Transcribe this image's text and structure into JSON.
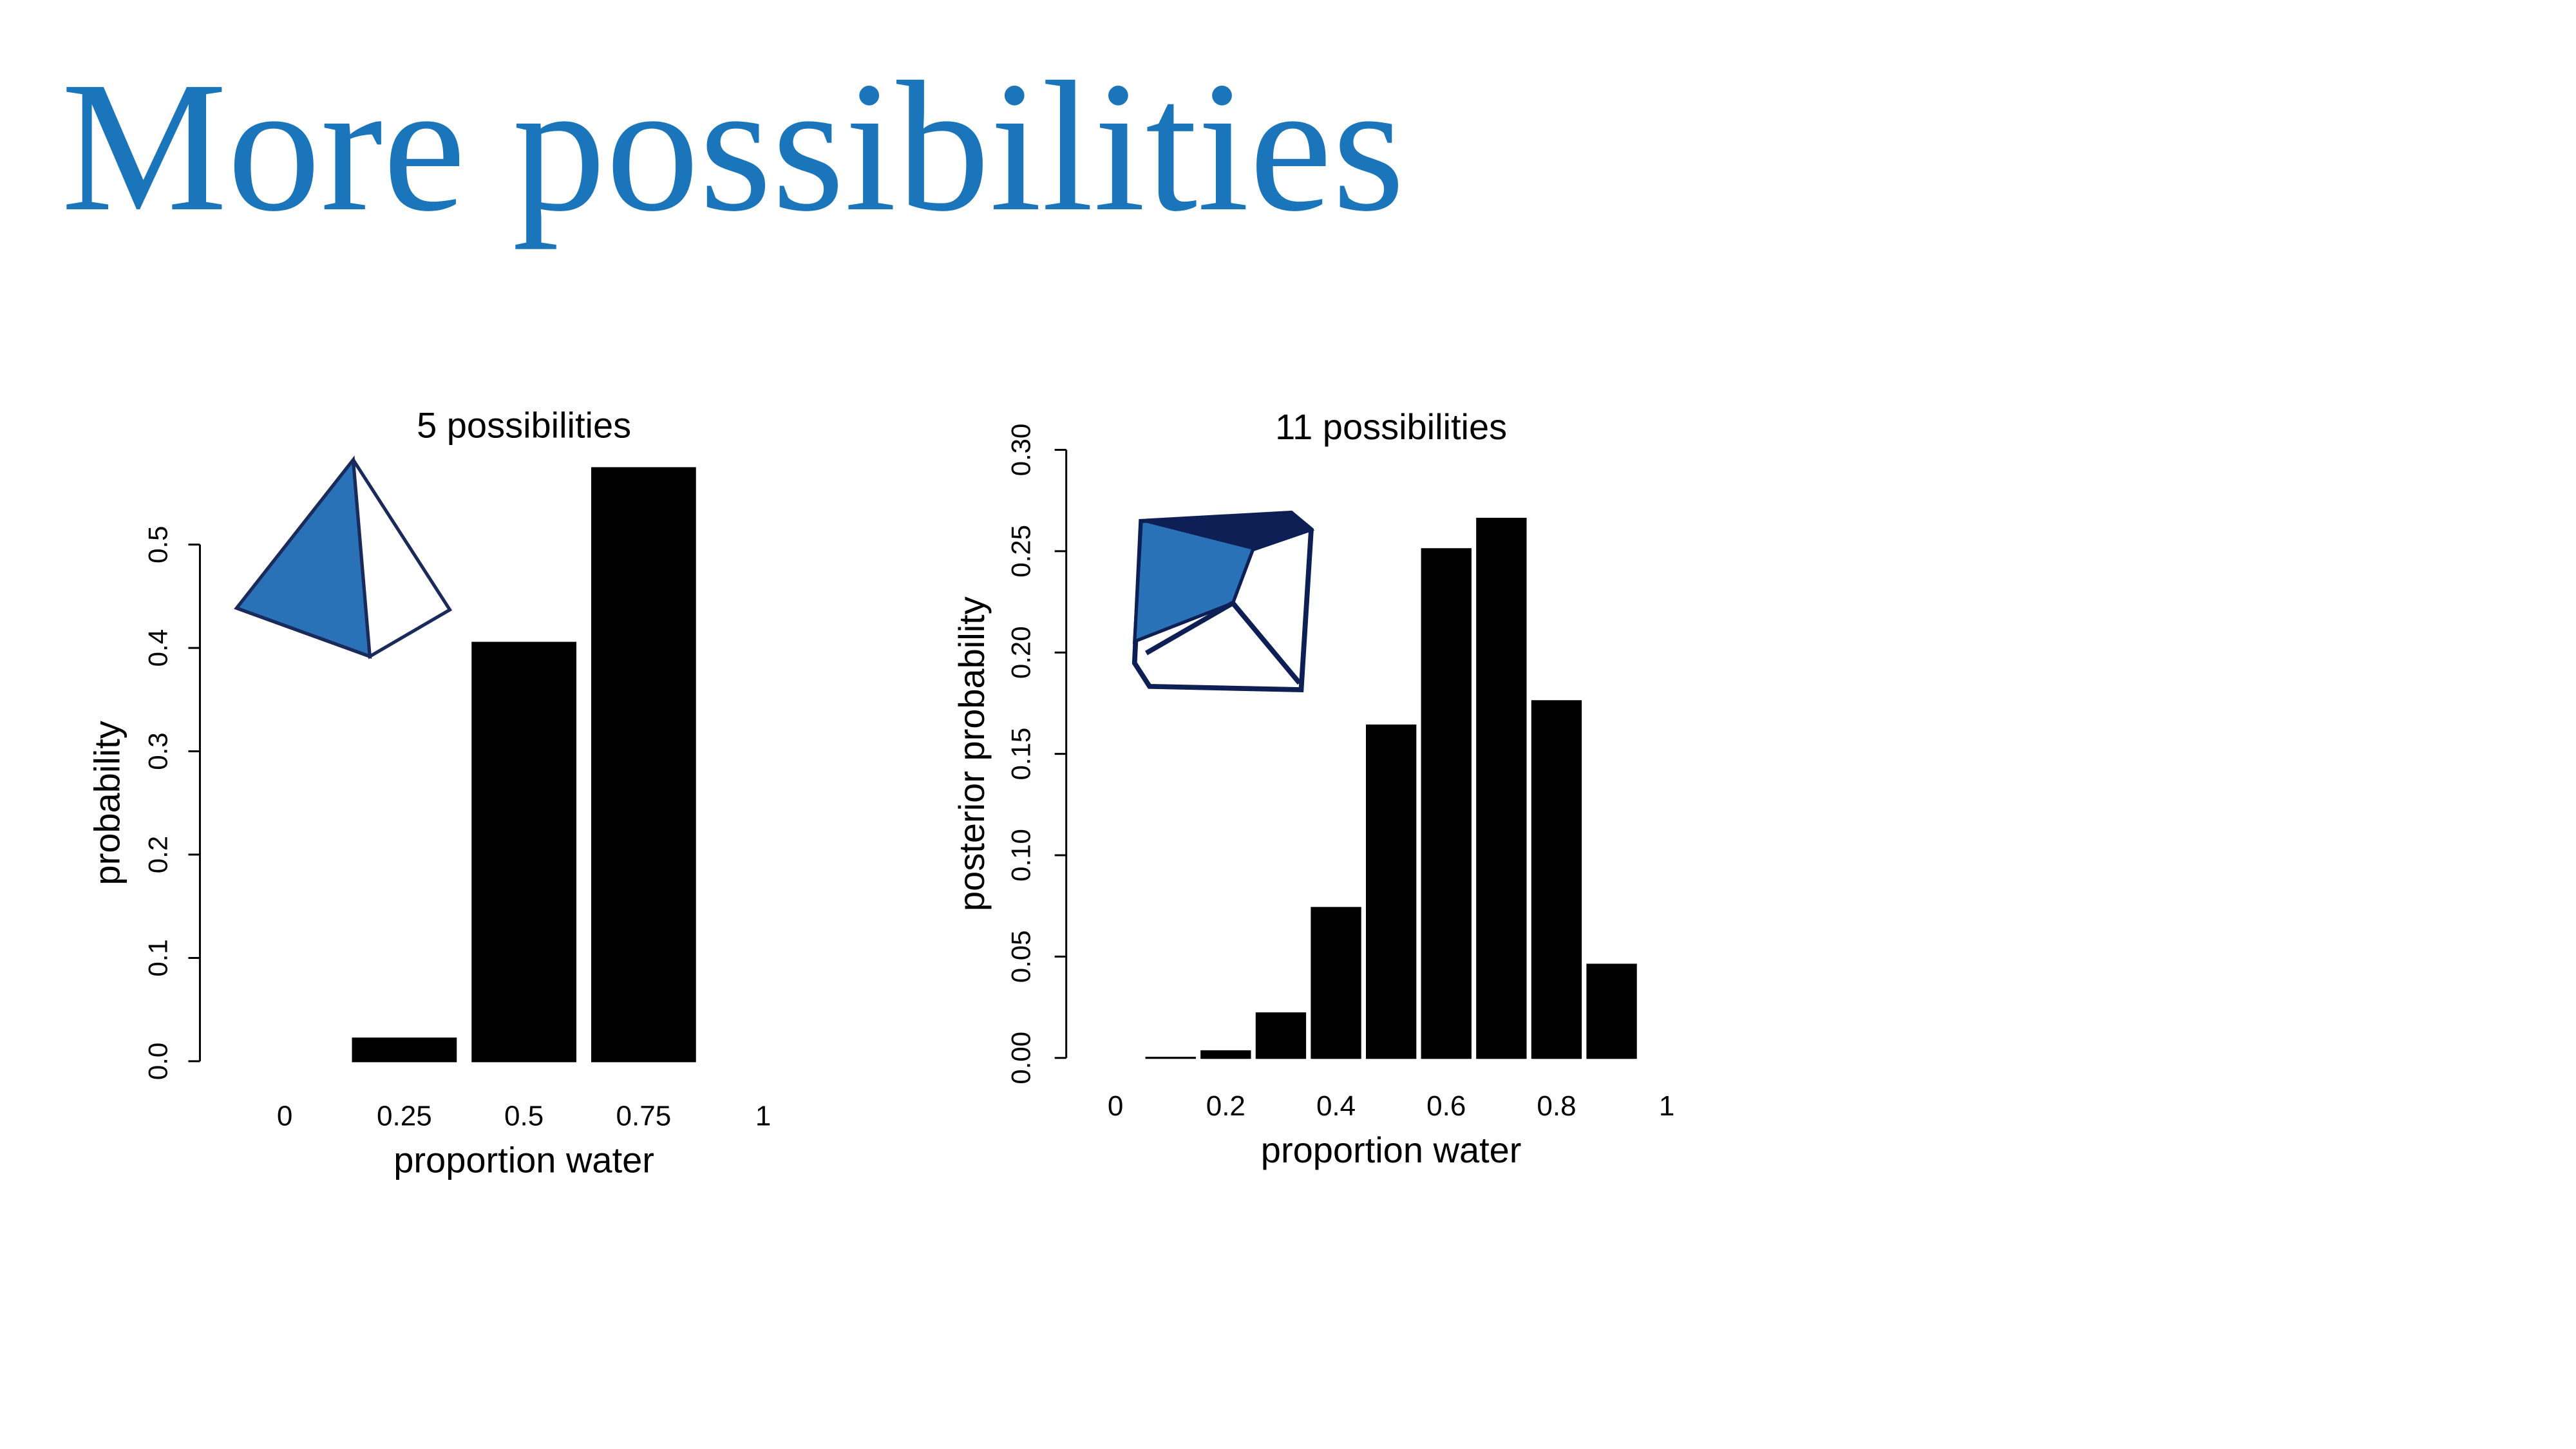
{
  "title": "More possibilities",
  "chart_data": [
    {
      "type": "bar",
      "title": "5 possibilities",
      "x_label": "proportion water",
      "y_label": "probability",
      "categories": [
        "0",
        "0.25",
        "0.5",
        "0.75",
        "1"
      ],
      "values": [
        0,
        0.022,
        0.405,
        0.574,
        0
      ],
      "color": "#000000",
      "ylim": [
        0,
        0.574
      ],
      "yticks": [
        {
          "value": 0,
          "label": "0.0"
        },
        0.1,
        0.2,
        0.3,
        0.4,
        0.5
      ]
    },
    {
      "type": "bar",
      "title": "11 possibilities",
      "x_label": "proportion water",
      "y_label": "posterior probability",
      "categories": [
        "0",
        null,
        "0.2",
        null,
        "0.4",
        null,
        "0.6",
        null,
        "0.8",
        null,
        "1"
      ],
      "values": [
        0,
        0.0001,
        0.0033,
        0.022,
        0.074,
        0.164,
        0.251,
        0.266,
        0.176,
        0.046,
        0
      ],
      "color": "#000000",
      "ylim": [
        0,
        0.3
      ],
      "yticks": [
        {
          "value": 0,
          "label": "0.00"
        },
        0.05,
        {
          "value": 0.1,
          "label": "0.10"
        },
        0.15,
        {
          "value": 0.2,
          "label": "0.20"
        },
        0.25,
        {
          "value": 0.3,
          "label": "0.30"
        }
      ]
    }
  ]
}
